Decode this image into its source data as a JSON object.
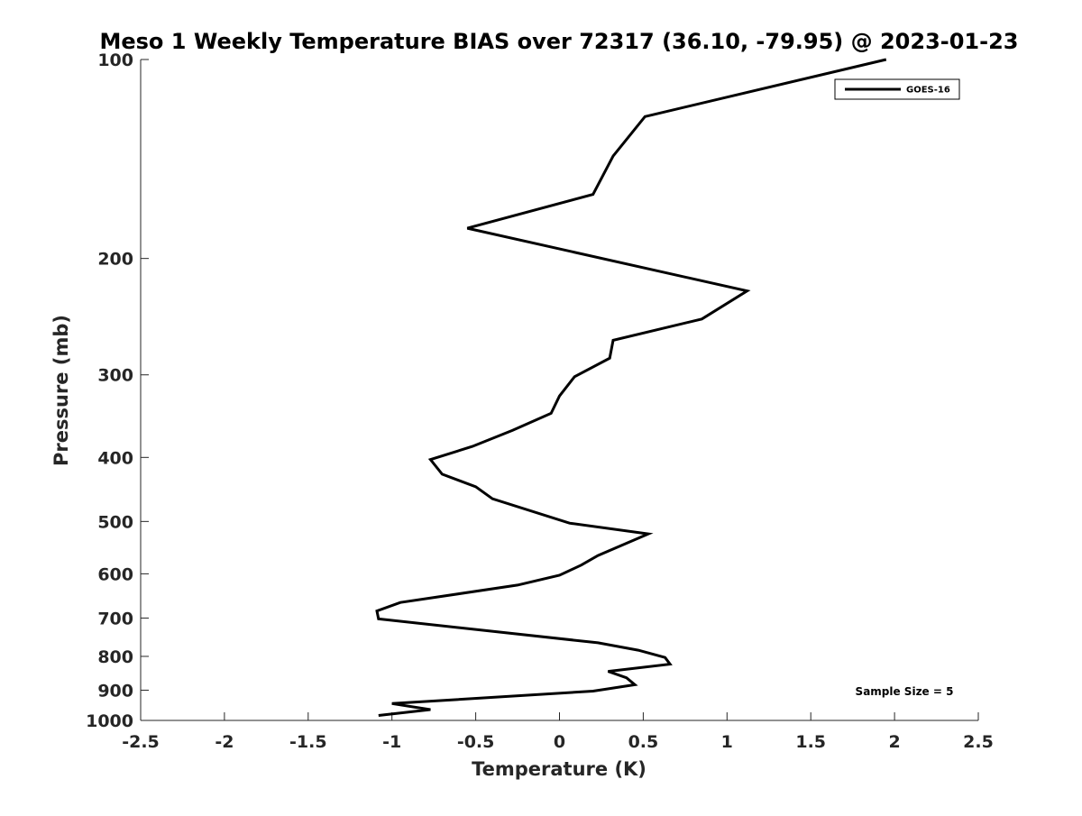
{
  "chart_data": {
    "type": "line",
    "title": "Meso 1 Weekly Temperature BIAS over 72317 (36.10, -79.95) @ 2023-01-23",
    "xlabel": "Temperature (K)",
    "ylabel": "Pressure (mb)",
    "xlim": [
      -2.5,
      2.5
    ],
    "ylim": [
      1000,
      100
    ],
    "y_scale": "log",
    "y_reversed": true,
    "grid": false,
    "legend_position": "top-right",
    "x_ticks": [
      -2.5,
      -2,
      -1.5,
      -1,
      -0.5,
      0,
      0.5,
      1,
      1.5,
      2,
      2.5
    ],
    "x_tick_labels": [
      "-2.5",
      "-2",
      "-1.5",
      "-1",
      "-0.5",
      "0",
      "0.5",
      "1",
      "1.5",
      "2",
      "2.5"
    ],
    "y_ticks": [
      100,
      200,
      300,
      400,
      500,
      600,
      700,
      800,
      900,
      1000
    ],
    "y_tick_labels": [
      "100",
      "200",
      "300",
      "400",
      "500",
      "600",
      "700",
      "800",
      "900",
      "1000"
    ],
    "series": [
      {
        "name": "GOES-16",
        "color": "#000000",
        "points": [
          {
            "temperature": 1.95,
            "pressure": 100
          },
          {
            "temperature": 0.51,
            "pressure": 122
          },
          {
            "temperature": 0.32,
            "pressure": 140
          },
          {
            "temperature": 0.2,
            "pressure": 160
          },
          {
            "temperature": -0.55,
            "pressure": 180
          },
          {
            "temperature": 1.12,
            "pressure": 224
          },
          {
            "temperature": 0.85,
            "pressure": 247
          },
          {
            "temperature": 0.32,
            "pressure": 266
          },
          {
            "temperature": 0.3,
            "pressure": 283
          },
          {
            "temperature": 0.09,
            "pressure": 302
          },
          {
            "temperature": 0.0,
            "pressure": 323
          },
          {
            "temperature": -0.05,
            "pressure": 343
          },
          {
            "temperature": -0.28,
            "pressure": 364
          },
          {
            "temperature": -0.52,
            "pressure": 385
          },
          {
            "temperature": -0.77,
            "pressure": 403
          },
          {
            "temperature": -0.7,
            "pressure": 424
          },
          {
            "temperature": -0.5,
            "pressure": 443
          },
          {
            "temperature": -0.4,
            "pressure": 462
          },
          {
            "temperature": 0.06,
            "pressure": 503
          },
          {
            "temperature": 0.53,
            "pressure": 522
          },
          {
            "temperature": 0.23,
            "pressure": 563
          },
          {
            "temperature": 0.13,
            "pressure": 582
          },
          {
            "temperature": 0.0,
            "pressure": 603
          },
          {
            "temperature": -0.25,
            "pressure": 624
          },
          {
            "temperature": -0.95,
            "pressure": 663
          },
          {
            "temperature": -1.09,
            "pressure": 683
          },
          {
            "temperature": -1.08,
            "pressure": 702
          },
          {
            "temperature": 0.23,
            "pressure": 763
          },
          {
            "temperature": 0.47,
            "pressure": 783
          },
          {
            "temperature": 0.63,
            "pressure": 803
          },
          {
            "temperature": 0.66,
            "pressure": 822
          },
          {
            "temperature": 0.29,
            "pressure": 843
          },
          {
            "temperature": 0.4,
            "pressure": 862
          },
          {
            "temperature": 0.45,
            "pressure": 883
          },
          {
            "temperature": 0.2,
            "pressure": 903
          },
          {
            "temperature": -1.0,
            "pressure": 943
          },
          {
            "temperature": -0.77,
            "pressure": 963
          },
          {
            "temperature": -1.08,
            "pressure": 983
          }
        ]
      }
    ],
    "annotations": [
      {
        "text": "Sample Size = 5",
        "position": "bottom-right"
      }
    ]
  }
}
